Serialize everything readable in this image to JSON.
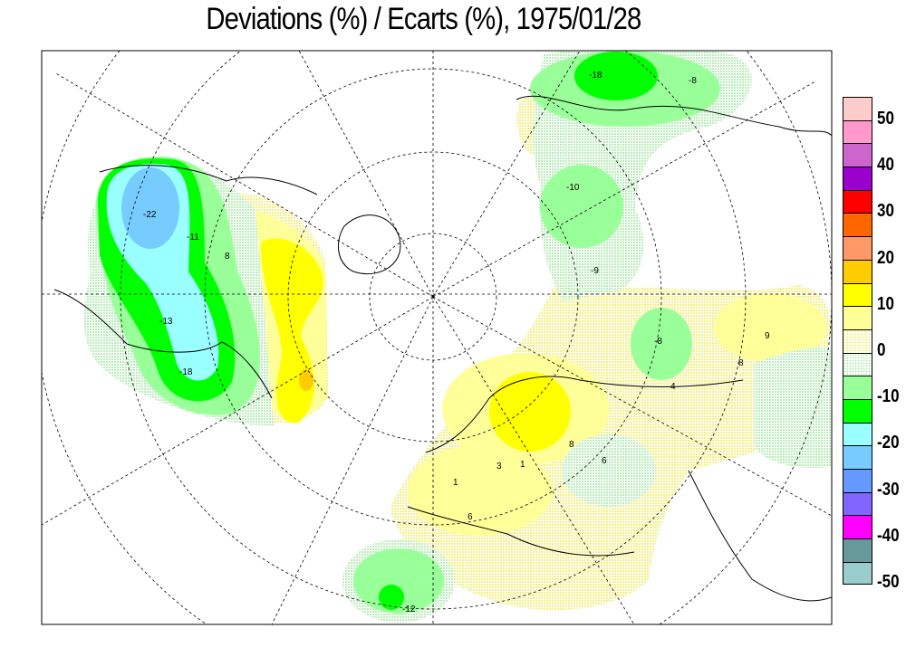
{
  "title": "Deviations (%) / Ecarts (%), 1975/01/28",
  "legend": {
    "colors": [
      "#ffcccc",
      "#ff99cc",
      "#cc66cc",
      "#9900cc",
      "#ff0000",
      "#ff6600",
      "#ff9966",
      "#ffcc00",
      "#ffff00",
      "#ffff99",
      "dotted-yellow",
      "dotted-green",
      "#99ff99",
      "#00ff00",
      "#99ffff",
      "#77ccff",
      "#6699ff",
      "#8066ff",
      "#ff00ff",
      "#669999",
      "#99cccc"
    ],
    "labels": [
      "50",
      "40",
      "30",
      "20",
      "10",
      "0",
      "-10",
      "-20",
      "-30",
      "-40",
      "-50"
    ]
  },
  "contour_labels": [
    "-22",
    "-11",
    "-13",
    "-18",
    "8",
    "-18",
    "-8",
    "-10",
    "-9",
    "-8",
    "9",
    "8",
    "4",
    "8",
    "1",
    "3",
    "6",
    "6",
    "-12",
    "1"
  ]
}
